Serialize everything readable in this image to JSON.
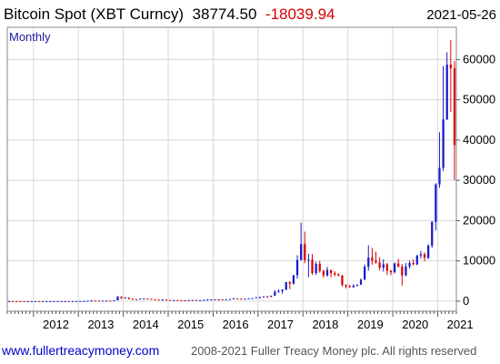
{
  "header": {
    "title": "Bitcoin Spot (XBT Curncy)",
    "last": "38774.50",
    "change": "-18039.94",
    "date": "2021-05-26"
  },
  "period": "Monthly",
  "footer": {
    "url": "www.fullertreacymoney.com",
    "copyright": "2008-2021 Fuller Treacy Money plc. All rights reserved"
  },
  "colors": {
    "up": "#1a1acc",
    "down": "#dd0000",
    "grid": "#d6d6d6",
    "frame": "#888888"
  },
  "chart_data": {
    "type": "candlestick",
    "x_axis": {
      "ticks": [
        "2012",
        "2013",
        "2014",
        "2015",
        "2016",
        "2017",
        "2018",
        "2019",
        "2020",
        "2021"
      ],
      "range": [
        "2011-06",
        "2021-06"
      ]
    },
    "y_axis": {
      "ticks": [
        0,
        10000,
        20000,
        30000,
        40000,
        50000,
        60000
      ],
      "ylim": [
        -2500,
        68000
      ],
      "position": "right"
    },
    "grid": true,
    "candles": [
      [
        "2011-06",
        10,
        30,
        2,
        15
      ],
      [
        "2011-07",
        15,
        16,
        12,
        14
      ],
      [
        "2011-08",
        14,
        14,
        7,
        8
      ],
      [
        "2011-09",
        8,
        9,
        4,
        5
      ],
      [
        "2011-10",
        5,
        5,
        2,
        3
      ],
      [
        "2011-11",
        3,
        4,
        2,
        3
      ],
      [
        "2011-12",
        3,
        5,
        3,
        5
      ],
      [
        "2012-01",
        5,
        7,
        4,
        6
      ],
      [
        "2012-02",
        6,
        6,
        4,
        5
      ],
      [
        "2012-03",
        5,
        5,
        4,
        5
      ],
      [
        "2012-04",
        5,
        5,
        4,
        5
      ],
      [
        "2012-05",
        5,
        5,
        5,
        5
      ],
      [
        "2012-06",
        5,
        7,
        5,
        7
      ],
      [
        "2012-07",
        7,
        9,
        6,
        9
      ],
      [
        "2012-08",
        9,
        16,
        7,
        10
      ],
      [
        "2012-09",
        10,
        12,
        10,
        12
      ],
      [
        "2012-10",
        12,
        13,
        10,
        11
      ],
      [
        "2012-11",
        11,
        13,
        10,
        13
      ],
      [
        "2012-12",
        13,
        14,
        12,
        13
      ],
      [
        "2013-01",
        13,
        21,
        13,
        20
      ],
      [
        "2013-02",
        20,
        33,
        20,
        33
      ],
      [
        "2013-03",
        33,
        95,
        33,
        93
      ],
      [
        "2013-04",
        93,
        266,
        50,
        139
      ],
      [
        "2013-05",
        139,
        140,
        80,
        129
      ],
      [
        "2013-06",
        129,
        130,
        90,
        97
      ],
      [
        "2013-07",
        97,
        110,
        65,
        106
      ],
      [
        "2013-08",
        106,
        140,
        100,
        140
      ],
      [
        "2013-09",
        140,
        145,
        110,
        133
      ],
      [
        "2013-10",
        133,
        215,
        110,
        204
      ],
      [
        "2013-11",
        204,
        1242,
        200,
        1130
      ],
      [
        "2013-12",
        1130,
        1165,
        520,
        760
      ],
      [
        "2014-01",
        760,
        1000,
        750,
        880
      ],
      [
        "2014-02",
        880,
        880,
        420,
        580
      ],
      [
        "2014-03",
        580,
        720,
        440,
        460
      ],
      [
        "2014-04",
        460,
        480,
        340,
        450
      ],
      [
        "2014-05",
        450,
        640,
        430,
        630
      ],
      [
        "2014-06",
        630,
        680,
        560,
        640
      ],
      [
        "2014-07",
        640,
        660,
        570,
        590
      ],
      [
        "2014-08",
        590,
        600,
        450,
        480
      ],
      [
        "2014-09",
        480,
        490,
        370,
        390
      ],
      [
        "2014-10",
        390,
        420,
        290,
        340
      ],
      [
        "2014-11",
        340,
        460,
        320,
        380
      ],
      [
        "2014-12",
        380,
        380,
        300,
        320
      ],
      [
        "2015-01",
        320,
        320,
        170,
        220
      ],
      [
        "2015-02",
        220,
        265,
        210,
        255
      ],
      [
        "2015-03",
        255,
        300,
        235,
        245
      ],
      [
        "2015-04",
        245,
        260,
        215,
        235
      ],
      [
        "2015-05",
        235,
        250,
        225,
        230
      ],
      [
        "2015-06",
        230,
        265,
        220,
        265
      ],
      [
        "2015-07",
        265,
        315,
        255,
        285
      ],
      [
        "2015-08",
        285,
        285,
        200,
        230
      ],
      [
        "2015-09",
        230,
        245,
        225,
        235
      ],
      [
        "2015-10",
        235,
        330,
        235,
        315
      ],
      [
        "2015-11",
        315,
        500,
        300,
        375
      ],
      [
        "2015-12",
        375,
        470,
        340,
        430
      ],
      [
        "2016-01",
        430,
        460,
        350,
        370
      ],
      [
        "2016-02",
        370,
        445,
        365,
        435
      ],
      [
        "2016-03",
        435,
        440,
        410,
        415
      ],
      [
        "2016-04",
        415,
        465,
        410,
        450
      ],
      [
        "2016-05",
        450,
        550,
        440,
        530
      ],
      [
        "2016-06",
        530,
        780,
        530,
        670
      ],
      [
        "2016-07",
        670,
        680,
        600,
        625
      ],
      [
        "2016-08",
        625,
        625,
        530,
        575
      ],
      [
        "2016-09",
        575,
        620,
        570,
        610
      ],
      [
        "2016-10",
        610,
        720,
        600,
        700
      ],
      [
        "2016-11",
        700,
        760,
        680,
        740
      ],
      [
        "2016-12",
        740,
        970,
        740,
        960
      ],
      [
        "2017-01",
        960,
        1160,
        750,
        970
      ],
      [
        "2017-02",
        970,
        1210,
        910,
        1190
      ],
      [
        "2017-03",
        1190,
        1290,
        890,
        1080
      ],
      [
        "2017-04",
        1080,
        1360,
        1040,
        1350
      ],
      [
        "2017-05",
        1350,
        2760,
        1350,
        2300
      ],
      [
        "2017-06",
        2300,
        2980,
        2100,
        2480
      ],
      [
        "2017-07",
        2480,
        2950,
        1830,
        2870
      ],
      [
        "2017-08",
        2870,
        4750,
        2700,
        4730
      ],
      [
        "2017-09",
        4730,
        4970,
        2980,
        4340
      ],
      [
        "2017-10",
        4340,
        6450,
        4110,
        6450
      ],
      [
        "2017-11",
        6450,
        11400,
        5600,
        10200
      ],
      [
        "2017-12",
        10200,
        19500,
        10100,
        14150
      ],
      [
        "2018-01",
        14150,
        17250,
        9400,
        10200
      ],
      [
        "2018-02",
        10200,
        11800,
        5950,
        10300
      ],
      [
        "2018-03",
        10300,
        11700,
        6550,
        6950
      ],
      [
        "2018-04",
        6950,
        9770,
        6500,
        9250
      ],
      [
        "2018-05",
        9250,
        9990,
        7050,
        7500
      ],
      [
        "2018-06",
        7500,
        7780,
        5780,
        6400
      ],
      [
        "2018-07",
        6400,
        8500,
        6070,
        7730
      ],
      [
        "2018-08",
        7730,
        7760,
        5880,
        7000
      ],
      [
        "2018-09",
        7000,
        7400,
        6140,
        6630
      ],
      [
        "2018-10",
        6630,
        7000,
        6200,
        6320
      ],
      [
        "2018-11",
        6320,
        6560,
        3650,
        4000
      ],
      [
        "2018-12",
        4000,
        4200,
        3150,
        3700
      ],
      [
        "2019-01",
        3700,
        4080,
        3350,
        3450
      ],
      [
        "2019-02",
        3450,
        4200,
        3380,
        3840
      ],
      [
        "2019-03",
        3840,
        4120,
        3700,
        4100
      ],
      [
        "2019-04",
        4100,
        5600,
        4050,
        5300
      ],
      [
        "2019-05",
        5300,
        9100,
        5300,
        8550
      ],
      [
        "2019-06",
        8550,
        13880,
        7550,
        10800
      ],
      [
        "2019-07",
        10800,
        13200,
        9060,
        10080
      ],
      [
        "2019-08",
        10080,
        12300,
        9320,
        9600
      ],
      [
        "2019-09",
        9600,
        10900,
        7700,
        8300
      ],
      [
        "2019-10",
        8300,
        10400,
        7350,
        9150
      ],
      [
        "2019-11",
        9150,
        9500,
        6520,
        7550
      ],
      [
        "2019-12",
        7550,
        7750,
        6440,
        7200
      ],
      [
        "2020-01",
        7200,
        9580,
        6880,
        9350
      ],
      [
        "2020-02",
        9350,
        10500,
        8450,
        8540
      ],
      [
        "2020-03",
        8540,
        9200,
        3850,
        6420
      ],
      [
        "2020-04",
        6420,
        9460,
        6170,
        8630
      ],
      [
        "2020-05",
        8630,
        10080,
        8100,
        9460
      ],
      [
        "2020-06",
        9460,
        10400,
        8900,
        9140
      ],
      [
        "2020-07",
        9140,
        11450,
        8930,
        11350
      ],
      [
        "2020-08",
        11350,
        12470,
        10530,
        11660
      ],
      [
        "2020-09",
        11660,
        12080,
        9880,
        10780
      ],
      [
        "2020-10",
        10780,
        14100,
        10430,
        13800
      ],
      [
        "2020-11",
        13800,
        19850,
        13240,
        19700
      ],
      [
        "2020-12",
        19700,
        29300,
        17570,
        28990
      ],
      [
        "2021-01",
        28990,
        41950,
        28130,
        33110
      ],
      [
        "2021-02",
        33110,
        58350,
        32300,
        45140
      ],
      [
        "2021-03",
        45140,
        61800,
        44950,
        58740
      ],
      [
        "2021-04",
        58740,
        64890,
        47000,
        57800
      ],
      [
        "2021-05",
        57800,
        59600,
        30000,
        38774
      ]
    ]
  }
}
